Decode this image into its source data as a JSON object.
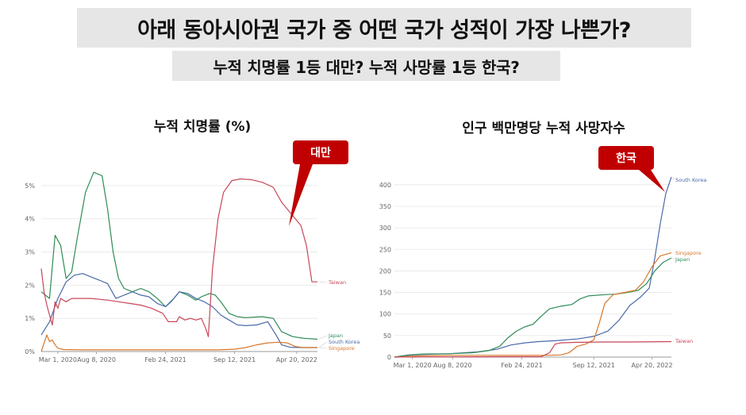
{
  "header": {
    "title": "아래 동아시아권 국가 중 어떤 국가 성적이 가장 나쁜가?",
    "subtitle": "누적 치명률 1등 대만? 누적 사망률 1등 한국?"
  },
  "colors": {
    "japan": "#2e8b57",
    "south_korea": "#4a6aa8",
    "singapore": "#d9772a",
    "taiwan": "#c8465a",
    "callout": "#c00000"
  },
  "chart_data": [
    {
      "type": "line",
      "title": "누적 치명률 (%)",
      "x_ticks": [
        "Mar 1, 2020",
        "Aug 8, 2020",
        "Feb 24, 2021",
        "Sep 12, 2021",
        "Apr 20, 2022"
      ],
      "y_ticks": [
        "0%",
        "1%",
        "2%",
        "3%",
        "4%",
        "5%"
      ],
      "ylim": [
        0,
        5.5
      ],
      "callout": "대만",
      "series": [
        {
          "name": "Japan",
          "color": "#2e8b57",
          "points": [
            [
              0.0,
              1.8
            ],
            [
              0.03,
              1.6
            ],
            [
              0.05,
              3.5
            ],
            [
              0.07,
              3.2
            ],
            [
              0.09,
              2.2
            ],
            [
              0.11,
              2.4
            ],
            [
              0.13,
              3.4
            ],
            [
              0.16,
              4.8
            ],
            [
              0.19,
              5.4
            ],
            [
              0.22,
              5.3
            ],
            [
              0.24,
              4.3
            ],
            [
              0.26,
              3.0
            ],
            [
              0.28,
              2.2
            ],
            [
              0.3,
              1.9
            ],
            [
              0.33,
              1.8
            ],
            [
              0.36,
              1.9
            ],
            [
              0.39,
              1.8
            ],
            [
              0.42,
              1.6
            ],
            [
              0.45,
              1.35
            ],
            [
              0.48,
              1.6
            ],
            [
              0.5,
              1.8
            ],
            [
              0.53,
              1.7
            ],
            [
              0.56,
              1.55
            ],
            [
              0.58,
              1.65
            ],
            [
              0.61,
              1.75
            ],
            [
              0.63,
              1.7
            ],
            [
              0.65,
              1.5
            ],
            [
              0.68,
              1.15
            ],
            [
              0.71,
              1.05
            ],
            [
              0.74,
              1.02
            ],
            [
              0.8,
              1.05
            ],
            [
              0.84,
              1.0
            ],
            [
              0.87,
              0.6
            ],
            [
              0.91,
              0.45
            ],
            [
              0.95,
              0.4
            ],
            [
              1.0,
              0.37
            ]
          ]
        },
        {
          "name": "South Korea",
          "color": "#4a6aa8",
          "points": [
            [
              0.0,
              0.5
            ],
            [
              0.03,
              0.9
            ],
            [
              0.06,
              1.6
            ],
            [
              0.09,
              2.1
            ],
            [
              0.12,
              2.3
            ],
            [
              0.15,
              2.35
            ],
            [
              0.18,
              2.25
            ],
            [
              0.21,
              2.15
            ],
            [
              0.24,
              2.05
            ],
            [
              0.27,
              1.6
            ],
            [
              0.3,
              1.7
            ],
            [
              0.33,
              1.8
            ],
            [
              0.36,
              1.7
            ],
            [
              0.39,
              1.65
            ],
            [
              0.42,
              1.45
            ],
            [
              0.45,
              1.35
            ],
            [
              0.47,
              1.5
            ],
            [
              0.5,
              1.8
            ],
            [
              0.53,
              1.75
            ],
            [
              0.56,
              1.6
            ],
            [
              0.59,
              1.5
            ],
            [
              0.62,
              1.35
            ],
            [
              0.65,
              1.1
            ],
            [
              0.68,
              0.95
            ],
            [
              0.71,
              0.8
            ],
            [
              0.74,
              0.78
            ],
            [
              0.78,
              0.8
            ],
            [
              0.82,
              0.9
            ],
            [
              0.85,
              0.5
            ],
            [
              0.87,
              0.2
            ],
            [
              0.9,
              0.13
            ],
            [
              0.95,
              0.12
            ],
            [
              1.0,
              0.12
            ]
          ]
        },
        {
          "name": "Taiwan",
          "color": "#c8465a",
          "points": [
            [
              0.0,
              2.5
            ],
            [
              0.01,
              1.8
            ],
            [
              0.02,
              1.4
            ],
            [
              0.03,
              1.1
            ],
            [
              0.04,
              0.8
            ],
            [
              0.05,
              1.5
            ],
            [
              0.06,
              1.3
            ],
            [
              0.07,
              1.6
            ],
            [
              0.09,
              1.5
            ],
            [
              0.11,
              1.6
            ],
            [
              0.18,
              1.6
            ],
            [
              0.24,
              1.55
            ],
            [
              0.28,
              1.5
            ],
            [
              0.32,
              1.45
            ],
            [
              0.36,
              1.4
            ],
            [
              0.4,
              1.3
            ],
            [
              0.44,
              1.15
            ],
            [
              0.46,
              0.9
            ],
            [
              0.49,
              0.9
            ],
            [
              0.5,
              1.05
            ],
            [
              0.52,
              0.95
            ],
            [
              0.54,
              1.0
            ],
            [
              0.56,
              0.95
            ],
            [
              0.58,
              1.0
            ],
            [
              0.595,
              0.7
            ],
            [
              0.605,
              0.45
            ],
            [
              0.62,
              2.5
            ],
            [
              0.64,
              4.0
            ],
            [
              0.66,
              4.8
            ],
            [
              0.69,
              5.15
            ],
            [
              0.72,
              5.2
            ],
            [
              0.76,
              5.18
            ],
            [
              0.8,
              5.1
            ],
            [
              0.84,
              4.95
            ],
            [
              0.87,
              4.5
            ],
            [
              0.9,
              4.2
            ],
            [
              0.94,
              3.8
            ],
            [
              0.96,
              3.2
            ],
            [
              0.98,
              2.1
            ],
            [
              1.0,
              2.1
            ]
          ]
        },
        {
          "name": "Singapore",
          "color": "#d9772a",
          "points": [
            [
              0.0,
              0.0
            ],
            [
              0.02,
              0.5
            ],
            [
              0.03,
              0.3
            ],
            [
              0.04,
              0.35
            ],
            [
              0.05,
              0.2
            ],
            [
              0.06,
              0.1
            ],
            [
              0.08,
              0.06
            ],
            [
              0.14,
              0.05
            ],
            [
              0.3,
              0.05
            ],
            [
              0.5,
              0.05
            ],
            [
              0.64,
              0.05
            ],
            [
              0.7,
              0.07
            ],
            [
              0.74,
              0.12
            ],
            [
              0.78,
              0.2
            ],
            [
              0.82,
              0.26
            ],
            [
              0.86,
              0.28
            ],
            [
              0.89,
              0.26
            ],
            [
              0.92,
              0.15
            ],
            [
              0.95,
              0.12
            ],
            [
              1.0,
              0.12
            ]
          ]
        }
      ]
    },
    {
      "type": "line",
      "title": "인구 백만명당 누적 사망자수",
      "x_ticks": [
        "Mar 1, 2020",
        "Aug 8, 2020",
        "Feb 24, 2021",
        "Sep 12, 2021",
        "Apr 20, 2022"
      ],
      "y_ticks": [
        "0",
        "50",
        "100",
        "150",
        "200",
        "250",
        "300",
        "350",
        "400"
      ],
      "ylim": [
        0,
        420
      ],
      "callout": "한국",
      "series": [
        {
          "name": "South Korea",
          "color": "#4a6aa8",
          "points": [
            [
              0.0,
              0
            ],
            [
              0.05,
              4
            ],
            [
              0.1,
              6
            ],
            [
              0.2,
              8
            ],
            [
              0.3,
              12
            ],
            [
              0.37,
              18
            ],
            [
              0.42,
              28
            ],
            [
              0.47,
              33
            ],
            [
              0.52,
              36
            ],
            [
              0.58,
              38
            ],
            [
              0.66,
              42
            ],
            [
              0.72,
              48
            ],
            [
              0.77,
              60
            ],
            [
              0.81,
              85
            ],
            [
              0.85,
              120
            ],
            [
              0.89,
              140
            ],
            [
              0.92,
              160
            ],
            [
              0.94,
              230
            ],
            [
              0.96,
              310
            ],
            [
              0.98,
              380
            ],
            [
              1.0,
              418
            ]
          ]
        },
        {
          "name": "Japan",
          "color": "#2e8b57",
          "points": [
            [
              0.0,
              0
            ],
            [
              0.05,
              5
            ],
            [
              0.1,
              7
            ],
            [
              0.2,
              8
            ],
            [
              0.28,
              10
            ],
            [
              0.34,
              15
            ],
            [
              0.38,
              25
            ],
            [
              0.41,
              45
            ],
            [
              0.44,
              60
            ],
            [
              0.47,
              70
            ],
            [
              0.5,
              76
            ],
            [
              0.53,
              95
            ],
            [
              0.56,
              112
            ],
            [
              0.6,
              118
            ],
            [
              0.64,
              122
            ],
            [
              0.67,
              135
            ],
            [
              0.7,
              142
            ],
            [
              0.76,
              145
            ],
            [
              0.8,
              146
            ],
            [
              0.84,
              150
            ],
            [
              0.88,
              155
            ],
            [
              0.91,
              170
            ],
            [
              0.94,
              200
            ],
            [
              0.97,
              220
            ],
            [
              1.0,
              230
            ]
          ]
        },
        {
          "name": "Singapore",
          "color": "#d9772a",
          "points": [
            [
              0.0,
              0
            ],
            [
              0.1,
              3
            ],
            [
              0.2,
              4
            ],
            [
              0.4,
              4
            ],
            [
              0.55,
              4
            ],
            [
              0.6,
              5
            ],
            [
              0.63,
              10
            ],
            [
              0.66,
              25
            ],
            [
              0.69,
              30
            ],
            [
              0.72,
              40
            ],
            [
              0.74,
              80
            ],
            [
              0.76,
              125
            ],
            [
              0.79,
              145
            ],
            [
              0.83,
              150
            ],
            [
              0.87,
              155
            ],
            [
              0.9,
              175
            ],
            [
              0.93,
              210
            ],
            [
              0.96,
              235
            ],
            [
              1.0,
              242
            ]
          ]
        },
        {
          "name": "Taiwan",
          "color": "#c8465a",
          "points": [
            [
              0.0,
              0
            ],
            [
              0.4,
              1
            ],
            [
              0.53,
              1
            ],
            [
              0.56,
              10
            ],
            [
              0.58,
              30
            ],
            [
              0.6,
              33
            ],
            [
              0.65,
              34
            ],
            [
              0.75,
              35
            ],
            [
              0.85,
              35
            ],
            [
              1.0,
              36
            ]
          ]
        }
      ]
    }
  ]
}
